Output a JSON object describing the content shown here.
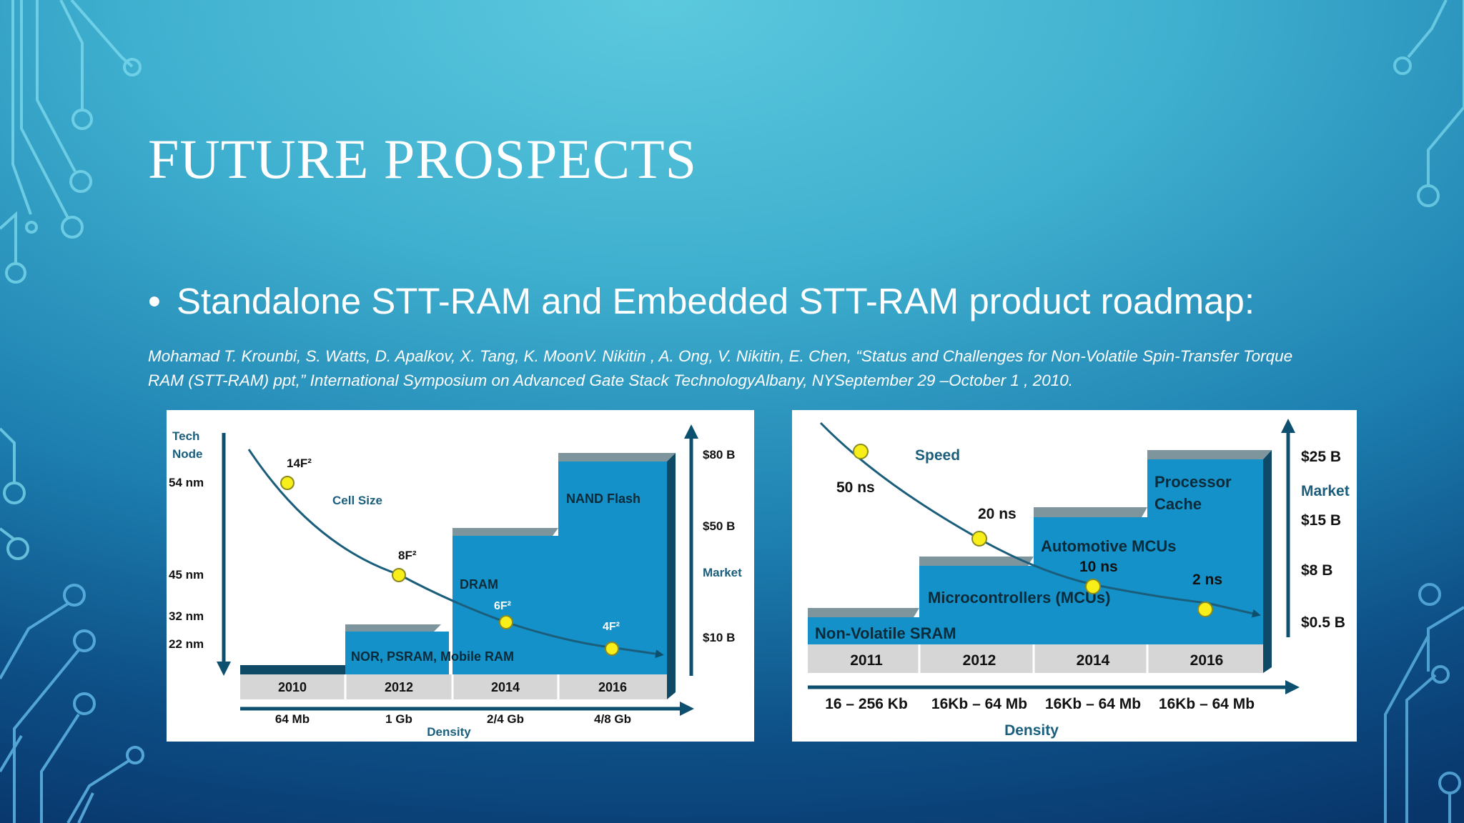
{
  "slide": {
    "title": "FUTURE PROSPECTS",
    "bullet_symbol": "•",
    "bullet_text": "Standalone STT-RAM and Embedded STT-RAM product roadmap:",
    "citation": "Mohamad T. Krounbi, S. Watts, D. Apalkov, X. Tang, K. MoonV. Nikitin , A. Ong, V. Nikitin, E. Chen, “Status and Challenges for Non-Volatile Spin-Transfer Torque RAM (STT-RAM) ppt,” International Symposium on Advanced Gate Stack TechnologyAlbany, NYSeptember 29 –October 1 , 2010."
  },
  "colors": {
    "block_blue": "#1391c8",
    "block_top": "#7f959e",
    "block_side": "#0e4a66",
    "axis_navy": "#0d4f6e",
    "year_bar": "#d6d6d6",
    "marker_yellow": "#f7ee1a",
    "curve": "#1b5e7c"
  },
  "chart_data": [
    {
      "type": "roadmap",
      "years": [
        "2010",
        "2012",
        "2014",
        "2016"
      ],
      "density": [
        "64 Mb",
        "1 Gb",
        "2/4 Gb",
        "4/8 Gb"
      ],
      "density_label": "Density",
      "tech_node_label_1": "Tech",
      "tech_node_label_2": "Node",
      "tech_nodes": [
        "54 nm",
        "45 nm",
        "32 nm",
        "22 nm"
      ],
      "market_label": "Market",
      "market_ticks": [
        "$80 B",
        "$50 B",
        "$10 B"
      ],
      "curve_label": "Cell Size",
      "cell_sizes": [
        "14F²",
        "8F²",
        "6F²",
        "4F²"
      ],
      "segments": [
        "NOR, PSRAM, Mobile RAM",
        "DRAM",
        "NAND Flash"
      ]
    },
    {
      "type": "roadmap",
      "years": [
        "2011",
        "2012",
        "2014",
        "2016"
      ],
      "density": [
        "16 – 256 Kb",
        "16Kb – 64 Mb",
        "16Kb – 64 Mb",
        "16Kb – 64 Mb"
      ],
      "density_label": "Density",
      "speed_label": "Speed",
      "speeds": [
        "50 ns",
        "20 ns",
        "10 ns",
        "2 ns"
      ],
      "market_label": "Market",
      "market_ticks": [
        "$25 B",
        "$15 B",
        "$8 B",
        "$0.5 B"
      ],
      "segments": [
        "Non-Volatile SRAM",
        "Microcontrollers (MCUs)",
        "Automotive MCUs",
        "Processor",
        "Cache"
      ]
    }
  ]
}
